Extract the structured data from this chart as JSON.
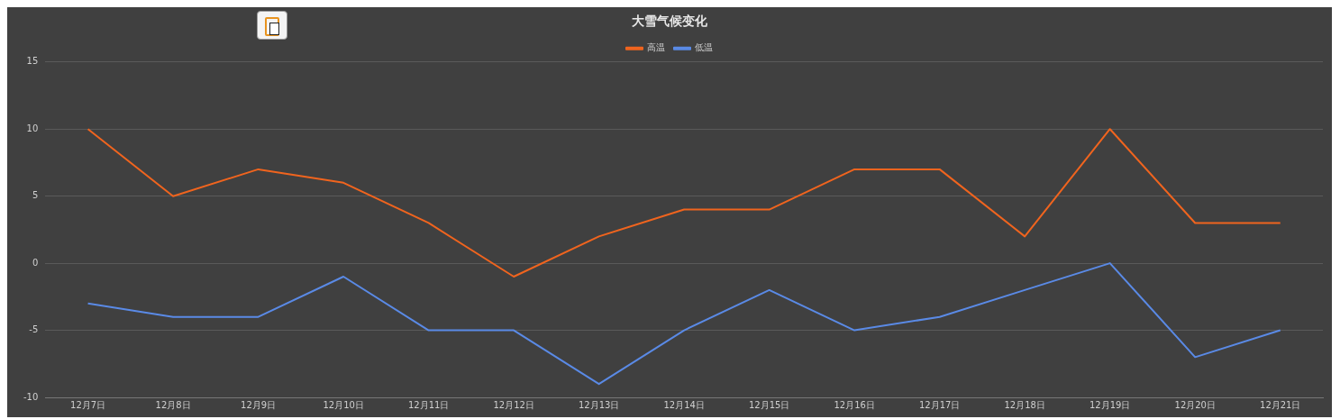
{
  "chart_data": {
    "type": "line",
    "title": "大雪气候变化",
    "categories": [
      "12月7日",
      "12月8日",
      "12月9日",
      "12月10日",
      "12月11日",
      "12月12日",
      "12月13日",
      "12月14日",
      "12月15日",
      "12月16日",
      "12月17日",
      "12月18日",
      "12月19日",
      "12月20日",
      "12月21日"
    ],
    "series": [
      {
        "name": "高温",
        "color": "#f0641e",
        "values": [
          10,
          5,
          7,
          6,
          3,
          -1,
          2,
          4,
          4,
          7,
          7,
          2,
          10,
          3,
          3
        ]
      },
      {
        "name": "低温",
        "color": "#5a8ae6",
        "values": [
          -3,
          -4,
          -4,
          -1,
          -5,
          -5,
          -9,
          -5,
          -2,
          -5,
          -4,
          -2,
          0,
          -7,
          -5
        ]
      }
    ],
    "ylim": [
      -10,
      15
    ],
    "yticks": [
      -10,
      -5,
      0,
      5,
      10,
      15
    ],
    "grid": "y",
    "legend": "top",
    "marker": "none",
    "line_style": "solid"
  }
}
